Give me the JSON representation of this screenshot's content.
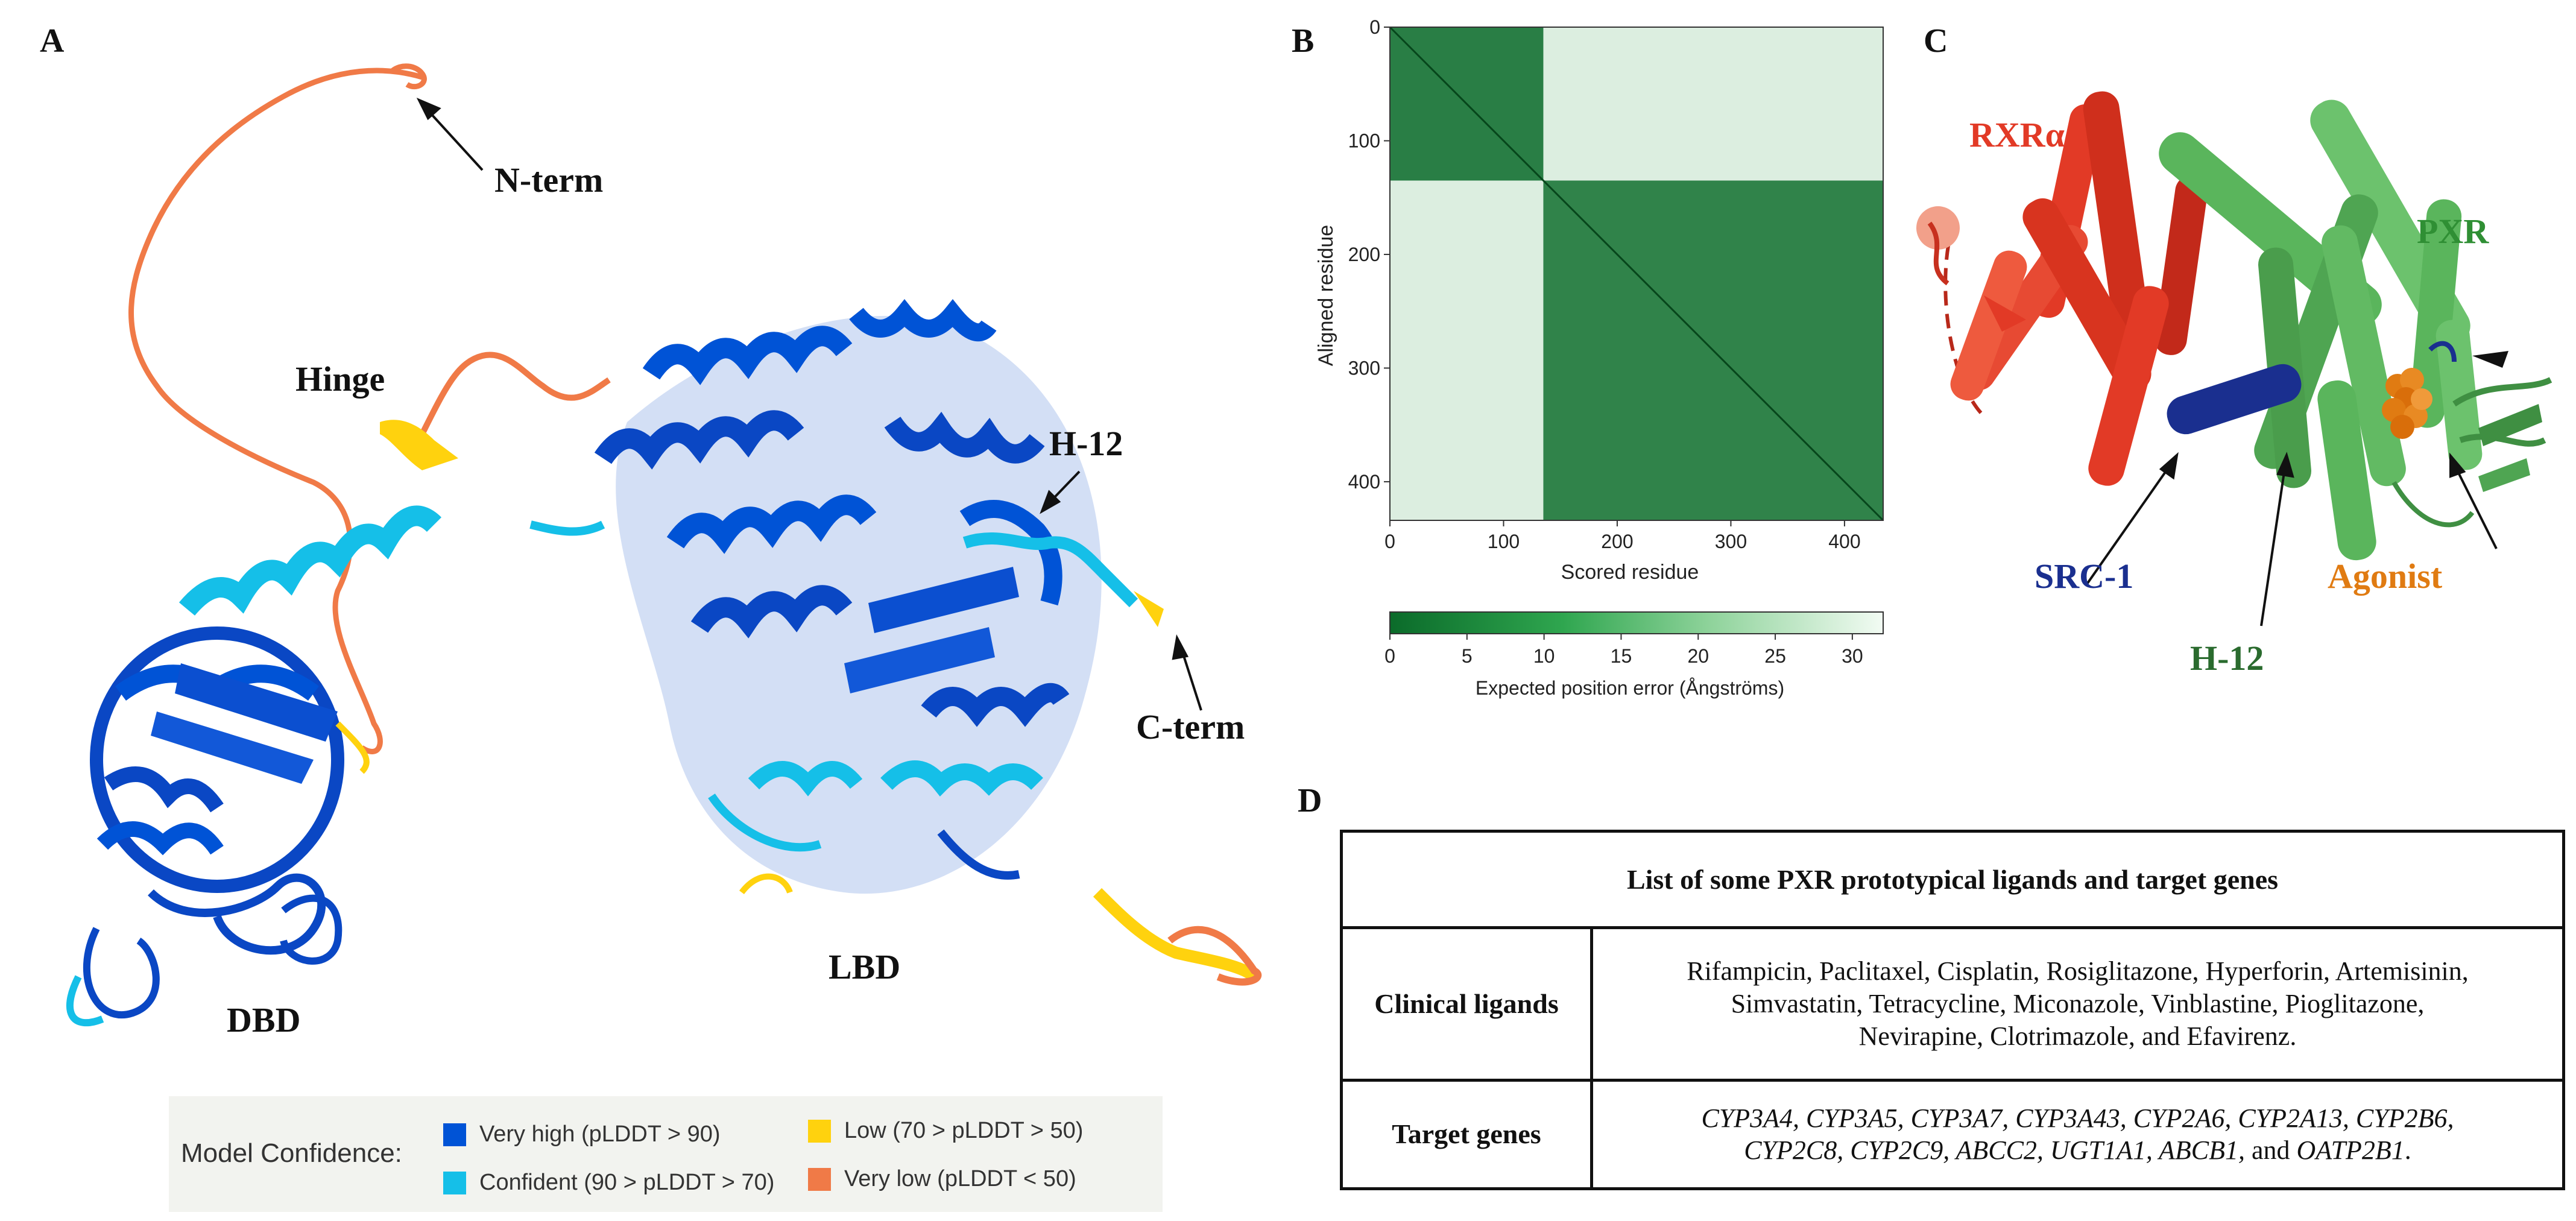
{
  "panels": {
    "a": "A",
    "b": "B",
    "c": "C",
    "d": "D"
  },
  "panel_a": {
    "labels": {
      "n_term": "N-term",
      "hinge": "Hinge",
      "h12": "H-12",
      "c_term": "C-term",
      "dbd": "DBD",
      "lbd": "LBD"
    },
    "legend": {
      "title": "Model Confidence:",
      "items": [
        {
          "label": "Very high (pLDDT > 90)",
          "color": "#0053d6"
        },
        {
          "label": "Confident (90 > pLDDT > 70)",
          "color": "#15bfe8"
        },
        {
          "label": "Low (70 > pLDDT > 50)",
          "color": "#ffd20e"
        },
        {
          "label": "Very low (pLDDT < 50)",
          "color": "#f07a47"
        }
      ]
    }
  },
  "chart_data": {
    "type": "heatmap",
    "title": "",
    "xlabel": "Scored residue",
    "ylabel": "Aligned residue",
    "x_ticks": [
      0,
      100,
      200,
      300,
      400
    ],
    "y_ticks": [
      0,
      100,
      200,
      300,
      400
    ],
    "xlim": [
      0,
      434
    ],
    "ylim": [
      0,
      434
    ],
    "domain_blocks": [
      {
        "from": 0,
        "to": 135,
        "error": 2
      },
      {
        "from": 135,
        "to": 434,
        "error": 3
      }
    ],
    "inter_domain_error": 29,
    "colorbar": {
      "label": "Expected position error (Ångströms)",
      "ticks": [
        0,
        5,
        10,
        15,
        20,
        25,
        30
      ],
      "range": [
        0,
        32
      ]
    }
  },
  "panel_c": {
    "labels": {
      "rxr": "RXRα",
      "pxr": "PXR",
      "src1": "SRC-1",
      "agonist": "Agonist",
      "h12": "H-12"
    },
    "colors": {
      "rxr": "#e23a26",
      "pxr": "#5ab55c",
      "src1": "#1a2f8f",
      "agonist": "#e07b12"
    }
  },
  "panel_d": {
    "title": "List of some PXR prototypical ligands and target genes",
    "rows": [
      {
        "head": "Clinical ligands",
        "lines": [
          "Rifampicin, Paclitaxel, Cisplatin, Rosiglitazone, Hyperforin, Artemisinin,",
          "Simvastatin, Tetracycline, Miconazole, Vinblastine, Pioglitazone,",
          "Nevirapine, Clotrimazole, and Efavirenz."
        ]
      },
      {
        "head": "Target genes",
        "lines": [
          "CYP3A4, CYP3A5, CYP3A7, CYP3A43, CYP2A6, CYP2A13, CYP2B6,",
          "CYP2C8, CYP2C9, ABCC2, UGT1A1, ABCB1,"
        ],
        "and_word": "and",
        "last_gene": "OATP2B1",
        "end_punct": "."
      }
    ]
  }
}
